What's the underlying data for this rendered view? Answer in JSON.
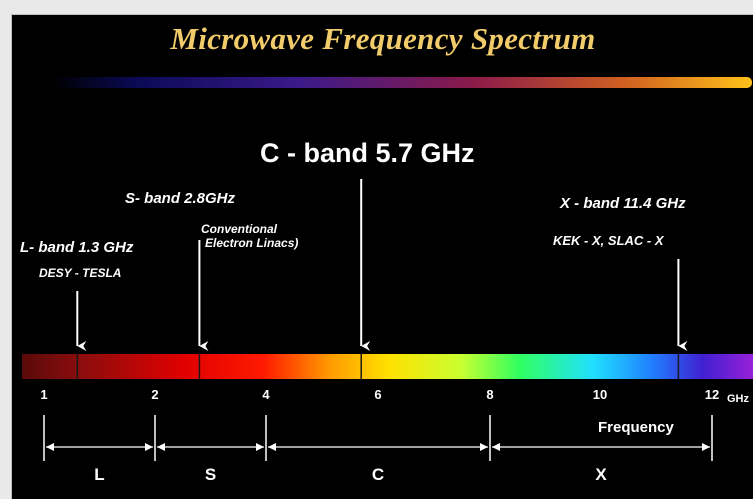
{
  "title": "Microwave Frequency Spectrum",
  "bands": [
    {
      "id": "c",
      "name": "C - band  5.7 GHz",
      "freq": 5.7
    },
    {
      "id": "s",
      "name": "S- band 2.8GHz",
      "freq": 2.8,
      "note1": "Conventional",
      "note2": "Electron Linacs)"
    },
    {
      "id": "l",
      "name": "L- band 1.3 GHz",
      "freq": 1.3,
      "note1": "DESY - TESLA"
    },
    {
      "id": "x",
      "name": "X - band 11.4 GHz",
      "freq": 11.4,
      "note1": "KEK - X, SLAC - X"
    }
  ],
  "ticks": [
    "1",
    "2",
    "4",
    "6",
    "8",
    "10",
    "12"
  ],
  "unit": "GHz",
  "frequency_label": "Frequency",
  "ranges": [
    {
      "label": "L",
      "from": 1,
      "to": 2
    },
    {
      "label": "S",
      "from": 2,
      "to": 4
    },
    {
      "label": "C",
      "from": 4,
      "to": 8
    },
    {
      "label": "X",
      "from": 8,
      "to": 12
    }
  ],
  "colors": {
    "title": "#f2cc6a",
    "text": "#ffffff"
  }
}
